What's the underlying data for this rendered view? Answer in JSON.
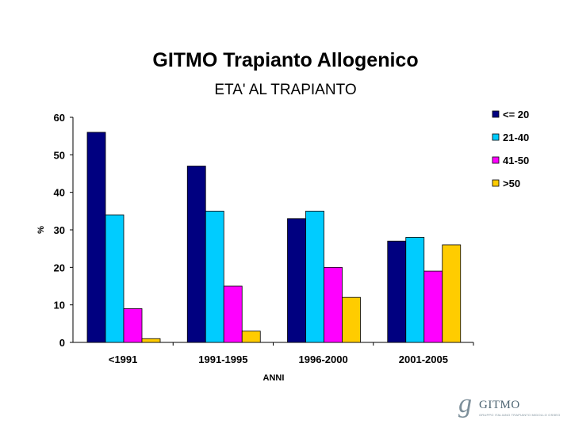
{
  "chart_data": {
    "type": "bar",
    "title": "GITMO Trapianto Allogenico",
    "subtitle": "ETA' AL TRAPIANTO",
    "xlabel": "ANNI",
    "ylabel": "%",
    "ylim": [
      0,
      60
    ],
    "yticks": [
      "0",
      "10",
      "20",
      "30",
      "40",
      "50",
      "60"
    ],
    "categories": [
      "<1991",
      "1991-1995",
      "1996-2000",
      "2001-2005"
    ],
    "series": [
      {
        "name": "<= 20",
        "color": "#000080",
        "values": [
          56,
          47,
          33,
          27
        ]
      },
      {
        "name": "21-40",
        "color": "#00CCFF",
        "values": [
          34,
          35,
          35,
          28
        ]
      },
      {
        "name": "41-50",
        "color": "#FF00FF",
        "values": [
          9,
          15,
          20,
          19
        ]
      },
      {
        "name": ">50",
        "color": "#FFCC00",
        "values": [
          1,
          3,
          12,
          26
        ]
      }
    ],
    "legend_position": "right",
    "grid": false
  },
  "logo": {
    "mark": "g",
    "text": "GITMO",
    "small": "GRUPPO ITALIANO TRAPIANTO MIDOLLO OSSEO"
  }
}
